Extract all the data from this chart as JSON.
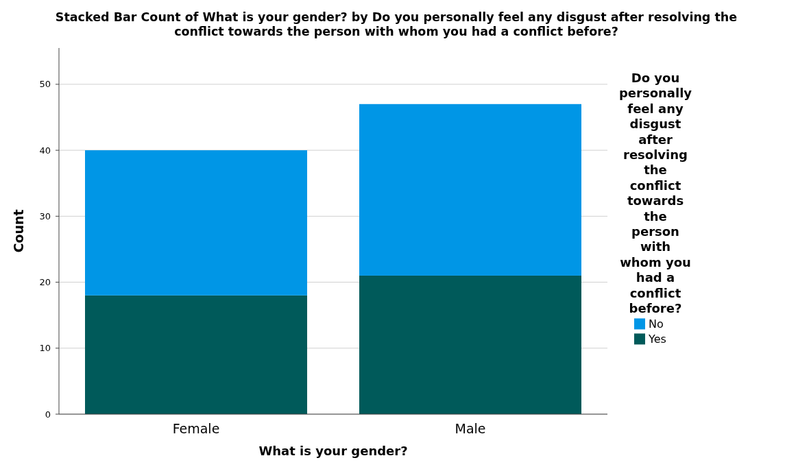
{
  "chart_data": {
    "type": "bar",
    "stacked": true,
    "title": "Stacked Bar Count of What is your gender? by Do you personally feel any disgust after resolving the conflict towards the person with whom you had a conflict before?",
    "xlabel": "What is your gender?",
    "ylabel": "Count",
    "legend_title": "Do you personally feel any disgust after resolving the conflict towards the person with whom you had a conflict before?",
    "categories": [
      "Female",
      "Male"
    ],
    "series": [
      {
        "name": "Yes",
        "color": "#005a5a",
        "values": [
          18,
          21
        ]
      },
      {
        "name": "No",
        "color": "#0096e6",
        "values": [
          22,
          26
        ]
      }
    ],
    "ylim": [
      0,
      55.5
    ],
    "yticks": [
      0,
      10,
      20,
      30,
      40,
      50
    ],
    "grid": "y",
    "legend": "right"
  }
}
